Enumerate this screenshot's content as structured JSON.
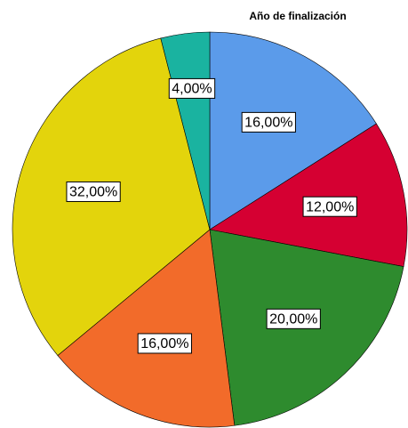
{
  "chart_data": {
    "type": "pie",
    "title": "Año de finalización",
    "values": [
      16,
      12,
      20,
      16,
      32,
      4
    ],
    "value_labels": [
      "16,00%",
      "12,00%",
      "20,00%",
      "16,00%",
      "32,00%",
      "4,00%"
    ],
    "colors": [
      "#5b9bea",
      "#d50032",
      "#2e8b2e",
      "#f26b2a",
      "#e3d40c",
      "#1ab3a0"
    ]
  }
}
